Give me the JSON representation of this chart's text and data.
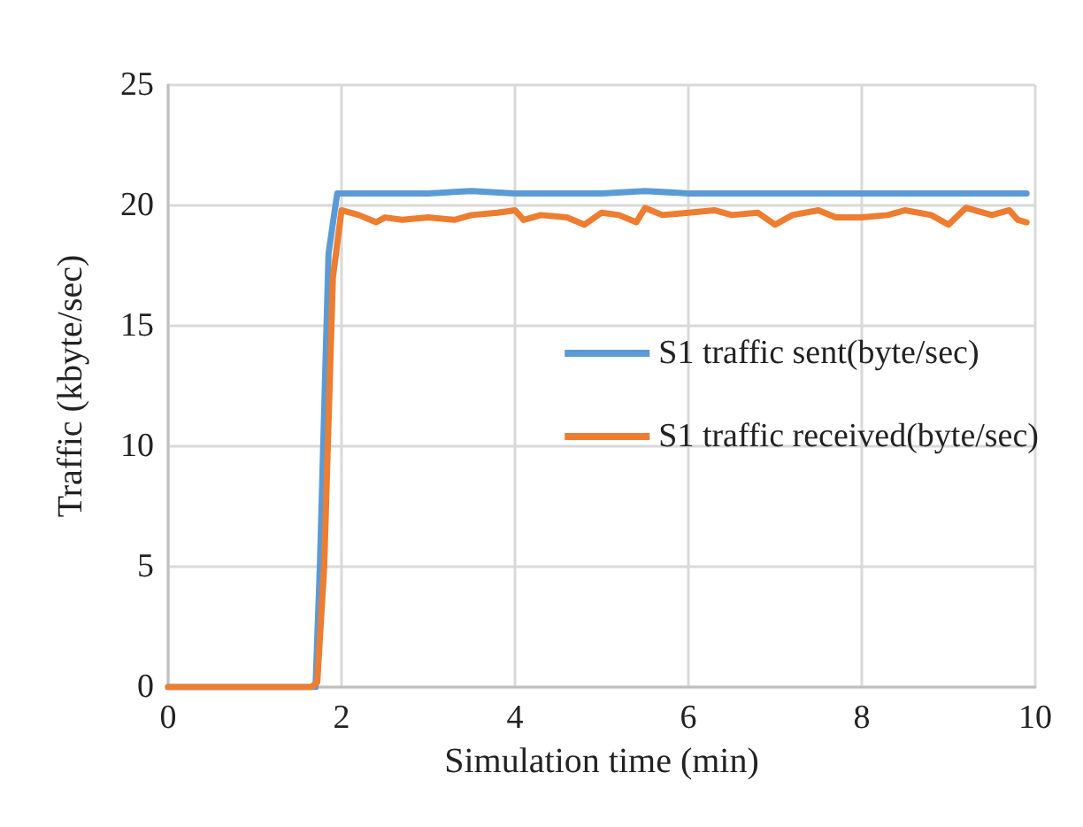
{
  "chart_data": {
    "type": "line",
    "xlabel": "Simulation time (min)",
    "ylabel": "Traffic (kbyte/sec)",
    "xlim": [
      0,
      10
    ],
    "xticks": [
      0,
      2,
      4,
      6,
      8,
      10
    ],
    "ylim": [
      0,
      25
    ],
    "yticks": [
      0,
      5,
      10,
      15,
      20,
      25
    ],
    "grid": true,
    "legend": "right",
    "marker": "none",
    "line_style": "solid",
    "series": [
      {
        "name": "S1 traffic sent(byte/sec)",
        "color": "#5b9bd5",
        "x": [
          0,
          1.7,
          1.75,
          1.85,
          1.95,
          2.0,
          2.5,
          3.0,
          3.5,
          4.0,
          4.5,
          5.0,
          5.5,
          6.0,
          6.5,
          7.0,
          7.5,
          8.0,
          8.5,
          9.0,
          9.5,
          9.9
        ],
        "values": [
          0,
          0,
          5,
          18,
          20.5,
          20.5,
          20.5,
          20.5,
          20.6,
          20.5,
          20.5,
          20.5,
          20.6,
          20.5,
          20.5,
          20.5,
          20.5,
          20.5,
          20.5,
          20.5,
          20.5,
          20.5
        ]
      },
      {
        "name": "S1 traffic received(byte/sec)",
        "color": "#ed7d31",
        "x": [
          0,
          1.65,
          1.72,
          1.8,
          1.9,
          2.0,
          2.2,
          2.4,
          2.5,
          2.7,
          3.0,
          3.3,
          3.5,
          3.8,
          4.0,
          4.1,
          4.3,
          4.6,
          4.8,
          5.0,
          5.2,
          5.4,
          5.5,
          5.7,
          6.0,
          6.3,
          6.5,
          6.8,
          7.0,
          7.2,
          7.5,
          7.7,
          8.0,
          8.3,
          8.5,
          8.8,
          9.0,
          9.2,
          9.5,
          9.7,
          9.8,
          9.9
        ],
        "values": [
          0,
          0,
          0.2,
          5,
          17,
          19.8,
          19.6,
          19.3,
          19.5,
          19.4,
          19.5,
          19.4,
          19.6,
          19.7,
          19.8,
          19.4,
          19.6,
          19.5,
          19.2,
          19.7,
          19.6,
          19.3,
          19.9,
          19.6,
          19.7,
          19.8,
          19.6,
          19.7,
          19.2,
          19.6,
          19.8,
          19.5,
          19.5,
          19.6,
          19.8,
          19.6,
          19.2,
          19.9,
          19.6,
          19.8,
          19.4,
          19.3
        ]
      }
    ]
  }
}
